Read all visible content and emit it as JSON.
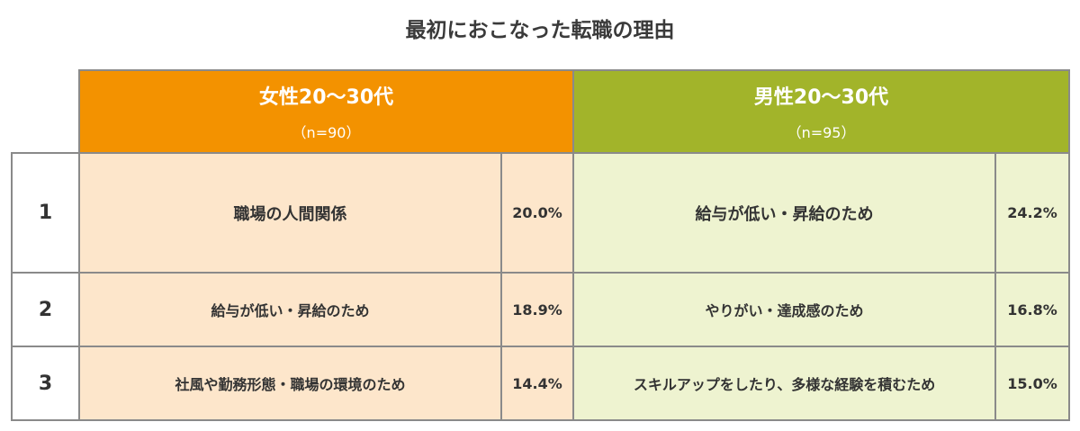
{
  "title": "最初におこなった転職の理由",
  "groups": {
    "female": {
      "name": "女性20～30代",
      "n": "（n=90）",
      "color": "#f39200",
      "cell_color": "#fde6cb"
    },
    "male": {
      "name": "男性20～30代",
      "n": "（n=95）",
      "color": "#a2b42a",
      "cell_color": "#eef3d0"
    }
  },
  "rows": [
    {
      "rank": "1",
      "female": {
        "reason": "職場の人間関係",
        "pct": "20.0%"
      },
      "male": {
        "reason": "給与が低い・昇給のため",
        "pct": "24.2%"
      }
    },
    {
      "rank": "2",
      "female": {
        "reason": "給与が低い・昇給のため",
        "pct": "18.9%"
      },
      "male": {
        "reason": "やりがい・達成感のため",
        "pct": "16.8%"
      }
    },
    {
      "rank": "3",
      "female": {
        "reason": "社風や勤務形態・職場の環境のため",
        "pct": "14.4%"
      },
      "male": {
        "reason": "スキルアップをしたり、多様な経験を積むため",
        "pct": "15.0%"
      }
    }
  ]
}
